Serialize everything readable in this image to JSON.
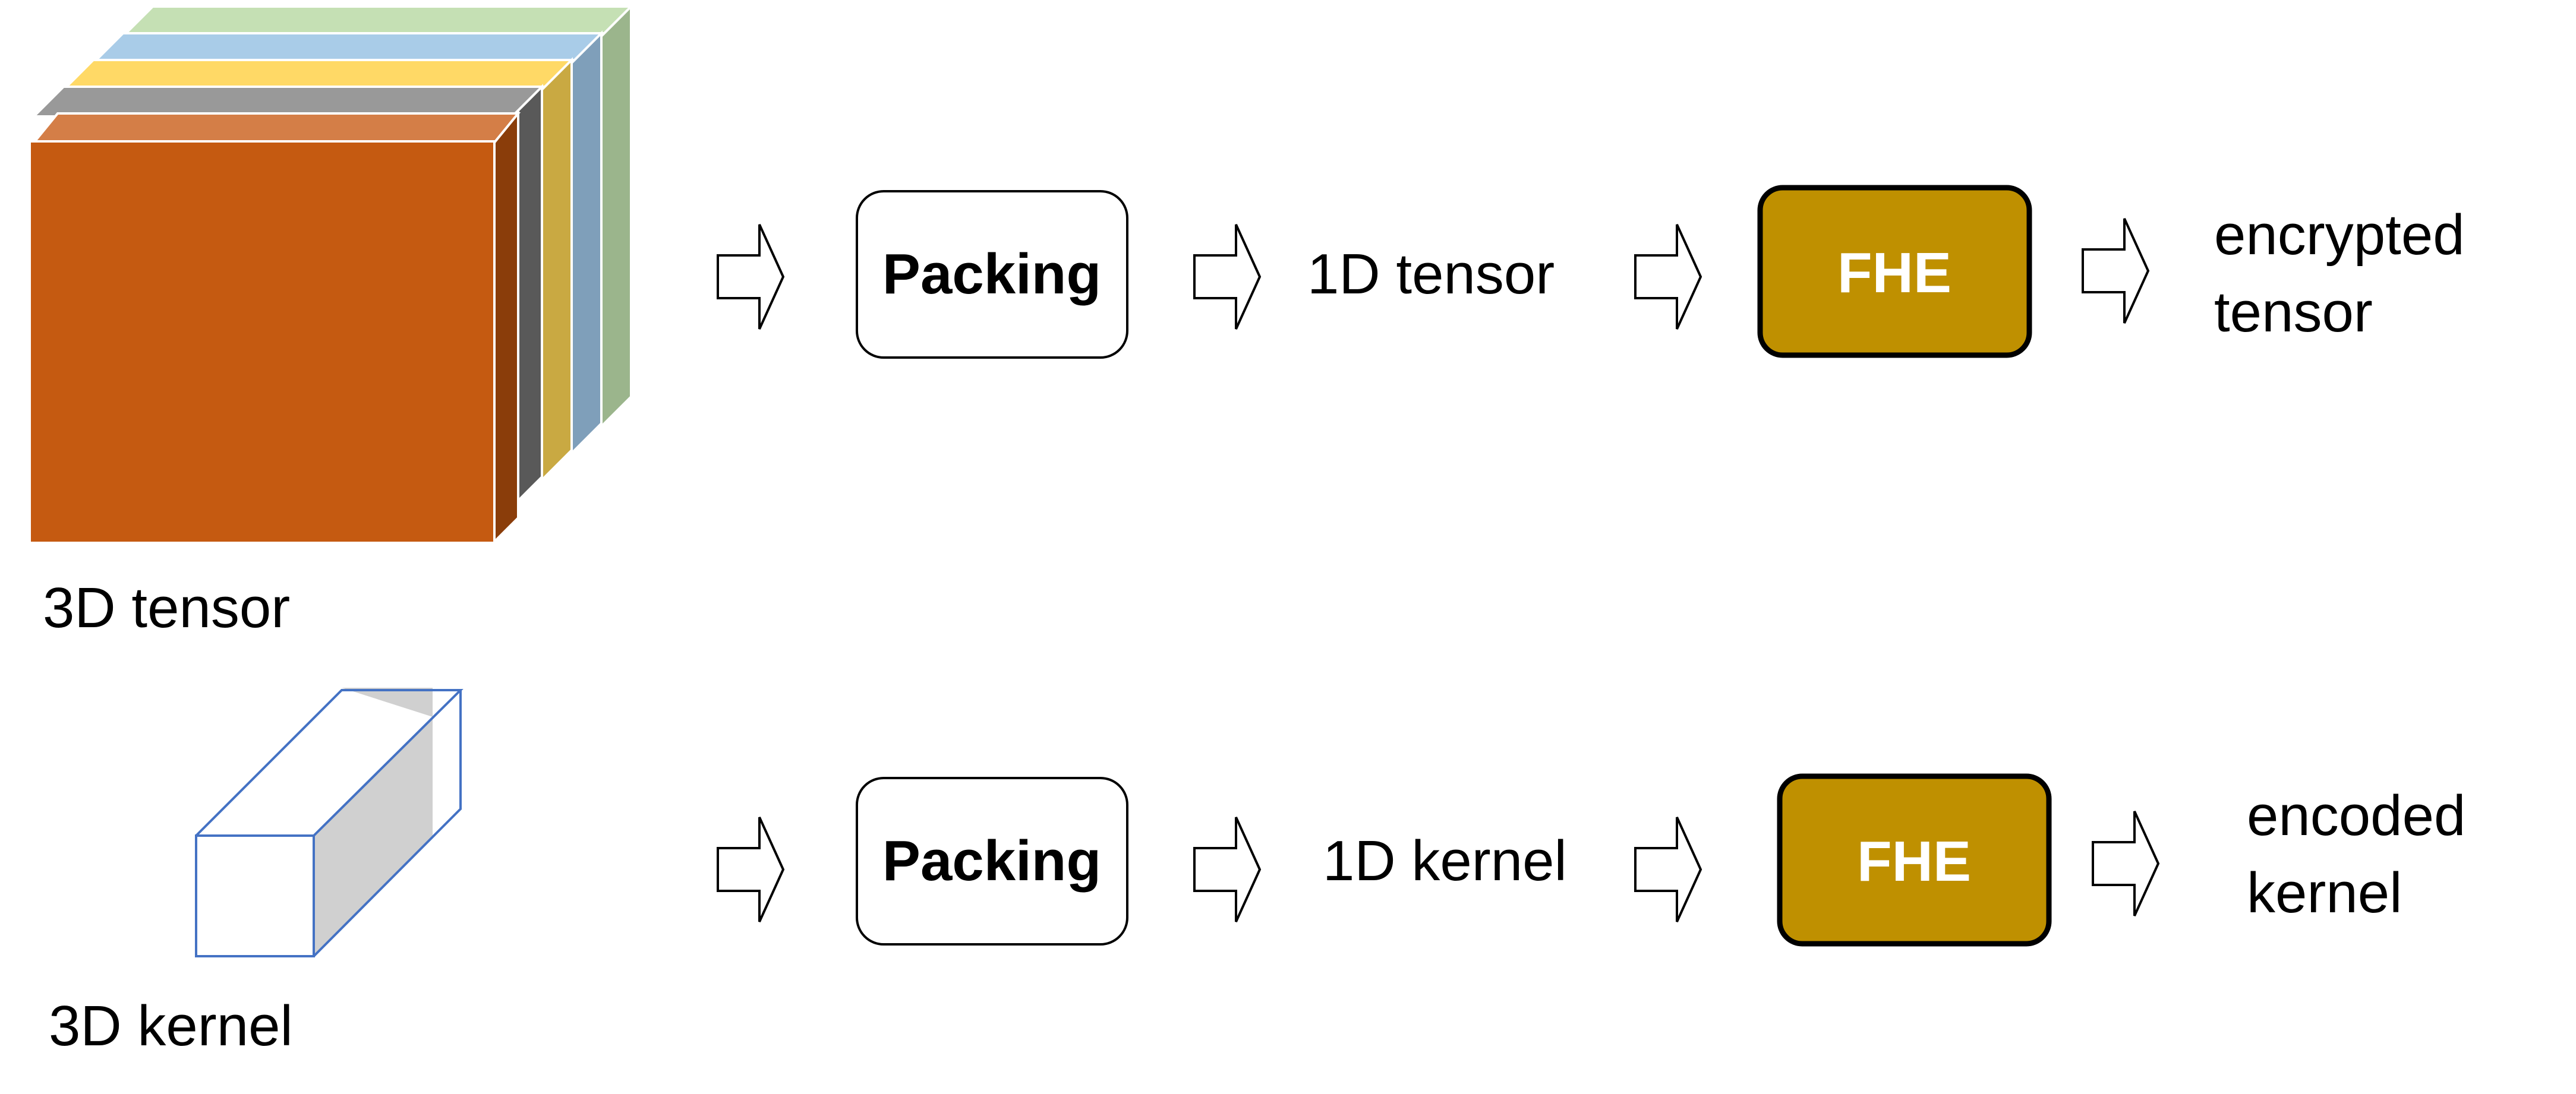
{
  "colors": {
    "tensor_front": "#C55A11",
    "tensor_top_layers": [
      "#D47E47",
      "#999999",
      "#FFD966",
      "#A9CCE8",
      "#C5E0B4"
    ],
    "tensor_side_layers": [
      "#8A3D0A",
      "#595959",
      "#C9A942",
      "#7F9FBA",
      "#9BB58C"
    ],
    "fhe_fill": "#BF9000",
    "fhe_text": "#FFFFFF",
    "kernel_outline": "#4472C4",
    "kernel_side": "#D0D0D0"
  },
  "rows": [
    {
      "source_label": "3D tensor",
      "source_icon": "3d-tensor-icon",
      "packing_label": "Packing",
      "packed_label": "1D tensor",
      "fhe_label": "FHE",
      "result_label_lines": [
        "encrypted",
        "tensor"
      ]
    },
    {
      "source_label": "3D kernel",
      "source_icon": "3d-kernel-icon",
      "packing_label": "Packing",
      "packed_label": "1D kernel",
      "fhe_label": "FHE",
      "result_label_lines": [
        "encoded",
        "kernel"
      ]
    }
  ]
}
